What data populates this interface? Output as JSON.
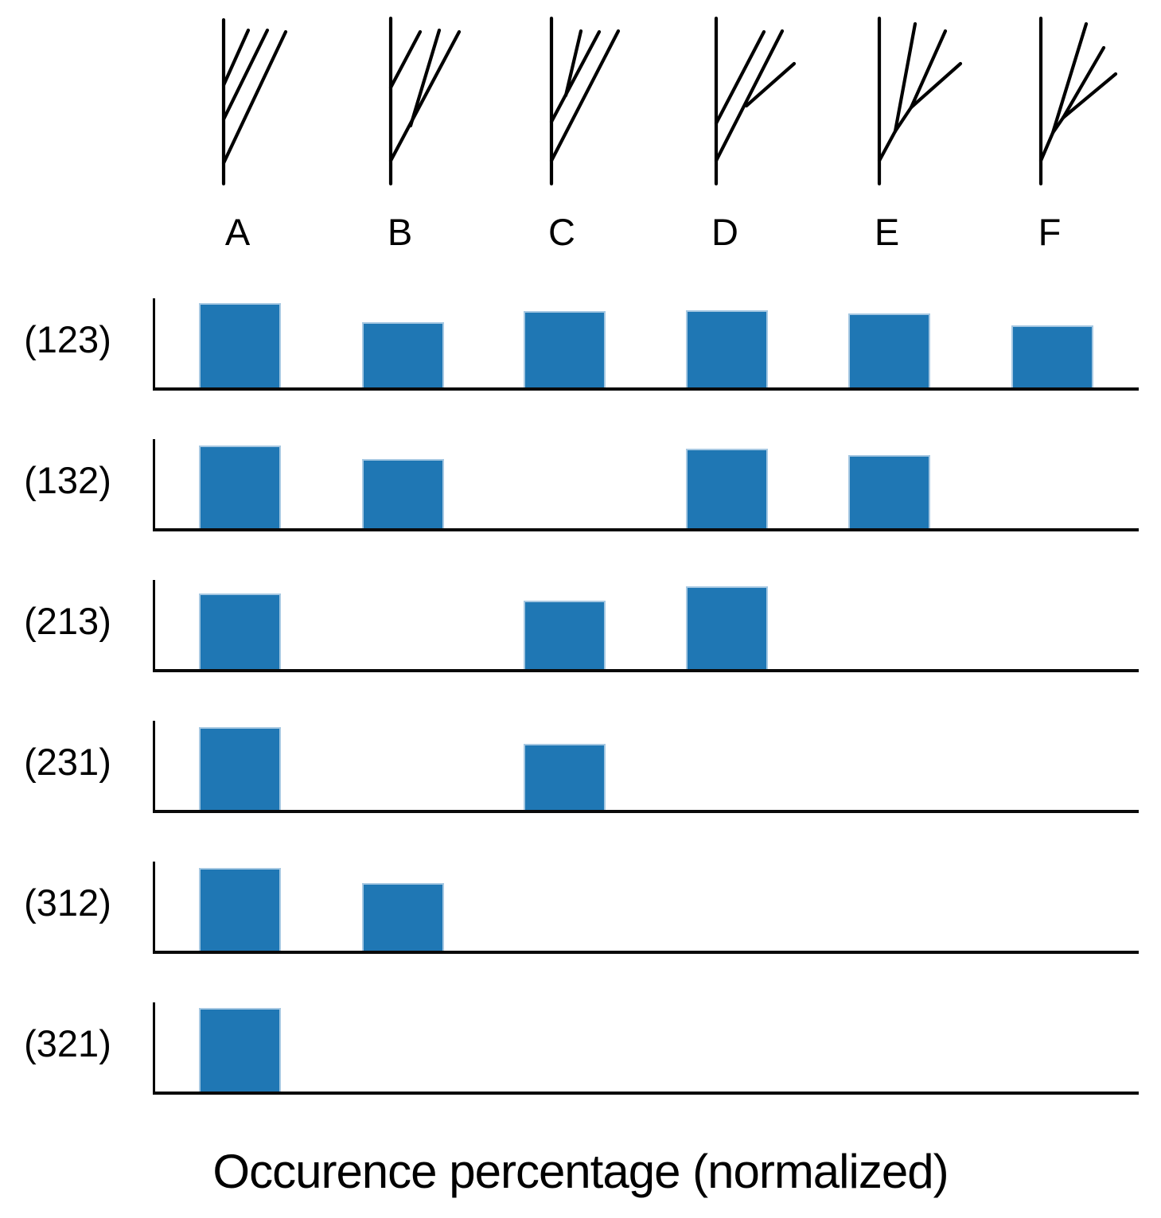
{
  "colors": {
    "bar": "#1f77b4",
    "bar_edge": "#a6c8e2",
    "axis": "#000000",
    "tree": "#000000"
  },
  "trees": [
    {
      "label": "A",
      "segments": [
        [
          281,
          25,
          281,
          231
        ],
        [
          281,
          205,
          359,
          40
        ],
        [
          281,
          150,
          336,
          38
        ],
        [
          281,
          107,
          312,
          38
        ]
      ]
    },
    {
      "label": "B",
      "segments": [
        [
          491,
          23,
          491,
          231
        ],
        [
          491,
          110,
          528,
          40
        ],
        [
          491,
          202,
          577,
          40
        ],
        [
          516,
          158,
          552,
          38
        ]
      ]
    },
    {
      "label": "C",
      "segments": [
        [
          693,
          23,
          693,
          231
        ],
        [
          693,
          202,
          777,
          39
        ],
        [
          693,
          153,
          753,
          40
        ],
        [
          711,
          120,
          730,
          39
        ]
      ]
    },
    {
      "label": "D",
      "segments": [
        [
          900,
          23,
          900,
          231
        ],
        [
          900,
          155,
          960,
          40
        ],
        [
          900,
          202,
          983,
          39
        ],
        [
          938,
          133,
          998,
          80
        ]
      ]
    },
    {
      "label": "E",
      "segments": [
        [
          1105,
          23,
          1105,
          231
        ],
        [
          1105,
          202,
          1125,
          165
        ],
        [
          1125,
          165,
          1150,
          30
        ],
        [
          1125,
          165,
          1145,
          135
        ],
        [
          1145,
          135,
          1188,
          39
        ],
        [
          1145,
          135,
          1207,
          80
        ]
      ]
    },
    {
      "label": "F",
      "segments": [
        [
          1308,
          23,
          1308,
          231
        ],
        [
          1308,
          202,
          1323,
          167
        ],
        [
          1323,
          167,
          1365,
          30
        ],
        [
          1323,
          167,
          1336,
          148
        ],
        [
          1336,
          148,
          1387,
          60
        ],
        [
          1336,
          148,
          1402,
          93
        ]
      ]
    }
  ],
  "chart_data": {
    "type": "bar",
    "title": "Occurence percentage (normalized)",
    "categories": [
      "A",
      "B",
      "C",
      "D",
      "E",
      "F"
    ],
    "ylim": [
      0,
      1
    ],
    "grid": false,
    "legend": false,
    "rows": [
      {
        "label": "(123)",
        "values": [
          1.0,
          0.78,
          0.91,
          0.92,
          0.88,
          0.74
        ]
      },
      {
        "label": "(132)",
        "values": [
          0.99,
          0.82,
          0,
          0.95,
          0.87,
          0
        ]
      },
      {
        "label": "(213)",
        "values": [
          0.9,
          0,
          0.82,
          0.99,
          0,
          0
        ]
      },
      {
        "label": "(231)",
        "values": [
          0.99,
          0,
          0.79,
          0,
          0,
          0
        ]
      },
      {
        "label": "(312)",
        "values": [
          0.99,
          0.81,
          0,
          0,
          0,
          0
        ]
      },
      {
        "label": "(321)",
        "values": [
          1.0,
          0,
          0,
          0,
          0,
          0
        ]
      }
    ]
  }
}
